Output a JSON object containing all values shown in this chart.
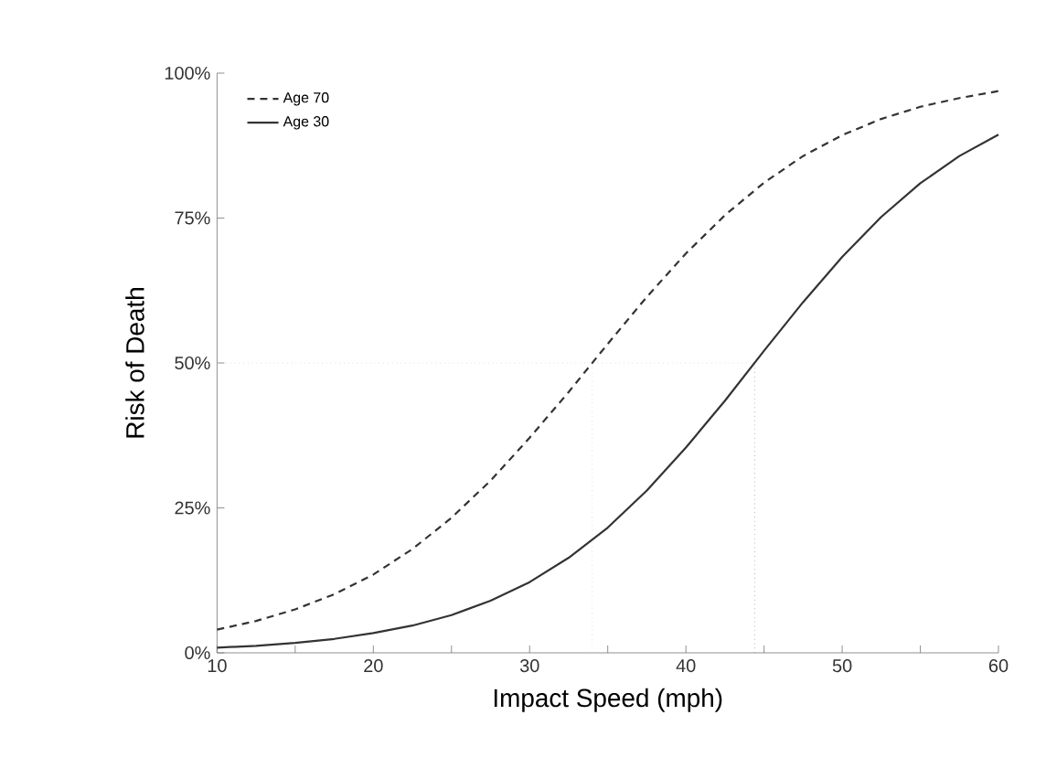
{
  "chart_data": {
    "type": "line",
    "xlabel": "Impact Speed (mph)",
    "ylabel": "Risk of Death",
    "x": [
      10,
      12.5,
      15,
      17.5,
      20,
      22.5,
      25,
      27.5,
      30,
      32.5,
      35,
      37.5,
      40,
      42.5,
      45,
      47.5,
      50,
      52.5,
      55,
      57.5,
      60
    ],
    "series": [
      {
        "name": "Age 70",
        "color": "#333333",
        "line_style": "dashed",
        "values": [
          4.0,
          5.5,
          7.5,
          10.1,
          13.5,
          17.9,
          23.3,
          29.7,
          37.1,
          45.0,
          53.3,
          61.4,
          68.9,
          75.5,
          81.1,
          85.7,
          89.3,
          92.1,
          94.2,
          95.7,
          96.9
        ]
      },
      {
        "name": "Age 30",
        "color": "#333333",
        "line_style": "solid",
        "values": [
          0.9,
          1.2,
          1.7,
          2.4,
          3.4,
          4.7,
          6.5,
          9.0,
          12.2,
          16.4,
          21.6,
          28.0,
          35.4,
          43.5,
          52.1,
          60.5,
          68.3,
          75.2,
          81.0,
          85.7,
          89.4
        ]
      }
    ],
    "xlim": [
      10,
      60
    ],
    "ylim": [
      0,
      100
    ],
    "xticks": [
      10,
      {
        "value": 15,
        "label": null
      },
      20,
      {
        "value": 25,
        "label": null
      },
      30,
      {
        "value": 35,
        "label": null
      },
      40,
      {
        "value": 45,
        "label": null
      },
      50,
      {
        "value": 55,
        "label": null
      },
      60
    ],
    "yticks": [
      {
        "value": 0,
        "label": "0%"
      },
      {
        "value": 25,
        "label": "25%"
      },
      {
        "value": 50,
        "label": "50%"
      },
      {
        "value": 75,
        "label": "75%"
      },
      {
        "value": 100,
        "label": "100%"
      }
    ],
    "ref_lines": [
      {
        "axis": "y",
        "value": 50,
        "color": "#cccccc",
        "line_style": "dotted"
      },
      {
        "axis": "x",
        "value": 34,
        "color": "#cccccc",
        "line_style": "dotted"
      },
      {
        "axis": "x",
        "value": 44.4,
        "color": "#888888",
        "line_style": "dotted"
      }
    ],
    "legend": "top left",
    "grid": false,
    "marker": "none"
  }
}
